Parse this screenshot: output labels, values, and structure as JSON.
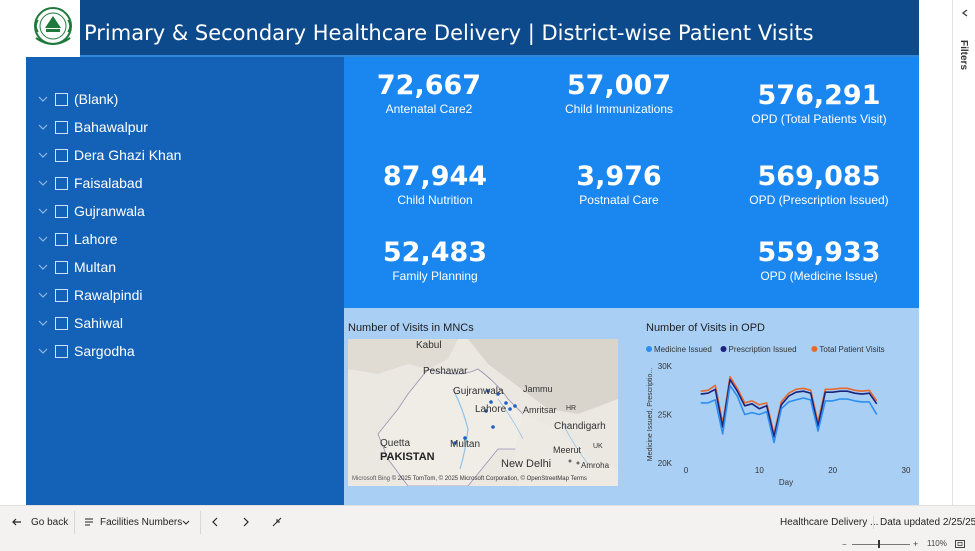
{
  "header": {
    "title": "Primary & Secondary Healthcare Delivery | District-wise Patient Visits",
    "logo_icon": "punjab-govt-emblem",
    "bar_color": "#0d4a8c"
  },
  "slicer": {
    "items": [
      {
        "label": "(Blank)"
      },
      {
        "label": "Bahawalpur"
      },
      {
        "label": "Dera Ghazi Khan"
      },
      {
        "label": "Faisalabad"
      },
      {
        "label": "Gujranwala"
      },
      {
        "label": "Lahore"
      },
      {
        "label": "Multan"
      },
      {
        "label": "Rawalpindi"
      },
      {
        "label": "Sahiwal"
      },
      {
        "label": "Sargodha"
      }
    ]
  },
  "kpis": {
    "antenatal": {
      "value": "72,667",
      "caption": "Antenatal Care2"
    },
    "immunizations": {
      "value": "57,007",
      "caption": "Child Immunizations"
    },
    "opd_total": {
      "value": "576,291",
      "caption": "OPD (Total Patients Visit)"
    },
    "nutrition": {
      "value": "87,944",
      "caption": "Child Nutrition"
    },
    "postnatal": {
      "value": "3,976",
      "caption": "Postnatal Care"
    },
    "opd_prescription": {
      "value": "569,085",
      "caption": "OPD (Prescription Issued)"
    },
    "family_planning": {
      "value": "52,483",
      "caption": "Family Planning"
    },
    "opd_medicine": {
      "value": "559,933",
      "caption": "OPD (Medicine Issue)"
    }
  },
  "map_section": {
    "title": "Number of Visits in MNCs",
    "labels": [
      "Kabul",
      "Peshawar",
      "Gujranwala",
      "Jammu",
      "Lahore",
      "Amritsar",
      "HR",
      "Chandigarh",
      "UK",
      "Quetta",
      "Multan",
      "PAKISTAN",
      "Meerut",
      "New Delhi",
      "Amroha"
    ],
    "attribution": "© 2025 TomTom, © 2025 Microsoft Corporation, © OpenStreetMap  Terms",
    "brand": "Microsoft Bing"
  },
  "opd_chart": {
    "title": "Number of Visits in OPD"
  },
  "chart_data": {
    "type": "line",
    "title": "Number of Visits in OPD",
    "xlabel": "Day",
    "ylabel": "Medicine Issued, Prescriptio...",
    "xlim": [
      0,
      30
    ],
    "ylim": [
      20000,
      30000
    ],
    "x_ticks": [
      "0",
      "10",
      "20",
      "30"
    ],
    "y_ticks": [
      "20K",
      "25K",
      "30K"
    ],
    "legend_position": "top",
    "x": [
      2,
      3,
      4,
      5,
      6,
      7,
      8,
      9,
      10,
      11,
      12,
      13,
      14,
      15,
      16,
      17,
      18,
      19,
      20,
      21,
      22,
      23,
      24,
      25,
      26
    ],
    "series": [
      {
        "name": "Medicine Issued",
        "color": "#2b8ef0",
        "values": [
          26200,
          26200,
          26500,
          23000,
          28000,
          26900,
          25000,
          25200,
          25000,
          25300,
          22100,
          25600,
          26300,
          26500,
          26700,
          26500,
          23300,
          26400,
          26400,
          26600,
          26600,
          26400,
          26300,
          26300,
          25000
        ]
      },
      {
        "name": "Prescription Issued",
        "color": "#1a237e",
        "values": [
          27100,
          27200,
          27600,
          23700,
          28600,
          27400,
          25900,
          26100,
          25600,
          25900,
          22700,
          26000,
          26900,
          27300,
          27400,
          27200,
          23800,
          27300,
          27300,
          27400,
          27400,
          27200,
          27100,
          27200,
          26100
        ]
      },
      {
        "name": "Total Patient Visits",
        "color": "#e8692c",
        "values": [
          27400,
          27500,
          28000,
          24100,
          28900,
          27700,
          26200,
          26400,
          26000,
          26200,
          23000,
          26300,
          27200,
          27600,
          27700,
          27500,
          24200,
          27600,
          27600,
          27700,
          27700,
          27500,
          27400,
          27500,
          26400
        ]
      }
    ]
  },
  "filters": {
    "label": "Filters"
  },
  "bottom_bar": {
    "go_back": "Go back",
    "page_selector": "Facilities Numbers",
    "report_name": "Healthcare Delivery ...",
    "data_updated": "Data updated 2/25/25"
  },
  "status": {
    "zoom": "110%"
  }
}
